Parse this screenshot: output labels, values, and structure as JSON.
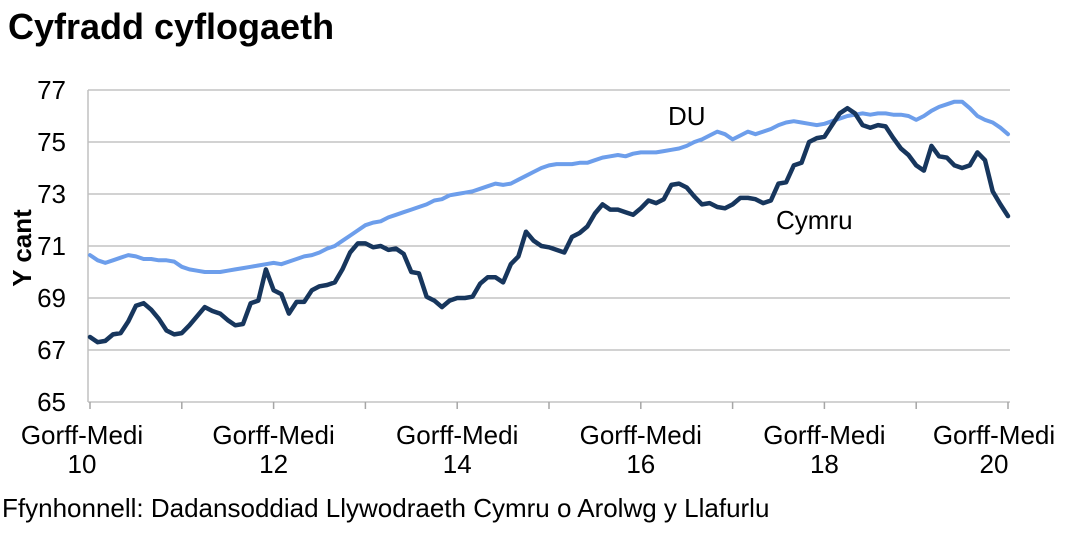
{
  "title": "Cyfradd cyflogaeth",
  "source_note": "Ffynhonnell: Dadansoddiad Llywodraeth Cymru o Arolwg y Llafurlu",
  "colors": {
    "du_line": "#6D9EEB",
    "cymru_line": "#17365D",
    "gridline": "#a6a6a6",
    "axis_border": "#c0c0c0",
    "text": "#000000",
    "background": "#ffffff"
  },
  "chart_data": {
    "type": "line",
    "title": "Cyfradd cyflogaeth",
    "xlabel": "",
    "ylabel": "Y cant",
    "ylim": [
      65,
      77
    ],
    "y_tick_step": 2,
    "y_tick_labels": [
      "65",
      "67",
      "69",
      "71",
      "73",
      "75",
      "77"
    ],
    "grid": "horizontal",
    "legend_position": "inline-labels-on-chart",
    "x_ticks": [
      {
        "month_index": 0,
        "line1": "Gorff-Medi",
        "line2": "10"
      },
      {
        "month_index": 24,
        "line1": "Gorff-Medi",
        "line2": "12"
      },
      {
        "month_index": 48,
        "line1": "Gorff-Medi",
        "line2": "14"
      },
      {
        "month_index": 72,
        "line1": "Gorff-Medi",
        "line2": "16"
      },
      {
        "month_index": 96,
        "line1": "Gorff-Medi",
        "line2": "18"
      },
      {
        "month_index": 120,
        "line1": "Gorff-Medi",
        "line2": "20"
      }
    ],
    "x_minor_ticks_years": 11,
    "series": [
      {
        "name": "DU",
        "color": "#6D9EEB",
        "stroke_width": 4,
        "values": [
          70.65,
          70.45,
          70.35,
          70.45,
          70.55,
          70.65,
          70.6,
          70.5,
          70.5,
          70.45,
          70.45,
          70.4,
          70.2,
          70.1,
          70.05,
          70.0,
          70.0,
          70.0,
          70.05,
          70.1,
          70.15,
          70.2,
          70.25,
          70.3,
          70.35,
          70.3,
          70.4,
          70.5,
          70.6,
          70.65,
          70.75,
          70.9,
          71.0,
          71.2,
          71.4,
          71.6,
          71.8,
          71.9,
          71.95,
          72.1,
          72.2,
          72.3,
          72.4,
          72.5,
          72.6,
          72.75,
          72.8,
          72.95,
          73.0,
          73.05,
          73.1,
          73.2,
          73.3,
          73.4,
          73.35,
          73.4,
          73.55,
          73.7,
          73.85,
          74.0,
          74.1,
          74.15,
          74.15,
          74.15,
          74.2,
          74.2,
          74.3,
          74.4,
          74.45,
          74.5,
          74.45,
          74.55,
          74.6,
          74.6,
          74.6,
          74.65,
          74.7,
          74.75,
          74.85,
          75.0,
          75.1,
          75.25,
          75.4,
          75.3,
          75.1,
          75.25,
          75.4,
          75.3,
          75.4,
          75.5,
          75.65,
          75.75,
          75.8,
          75.75,
          75.7,
          75.65,
          75.7,
          75.8,
          75.9,
          76.0,
          76.05,
          76.1,
          76.05,
          76.1,
          76.1,
          76.05,
          76.05,
          76.0,
          75.85,
          76.0,
          76.2,
          76.35,
          76.45,
          76.55,
          76.55,
          76.3,
          76.0,
          75.85,
          75.75,
          75.55,
          75.3
        ]
      },
      {
        "name": "Cymru",
        "color": "#17365D",
        "stroke_width": 4.5,
        "values": [
          67.5,
          67.3,
          67.35,
          67.6,
          67.65,
          68.1,
          68.7,
          68.8,
          68.55,
          68.2,
          67.75,
          67.6,
          67.65,
          67.95,
          68.3,
          68.65,
          68.5,
          68.4,
          68.15,
          67.95,
          68.0,
          68.8,
          68.9,
          70.1,
          69.3,
          69.15,
          68.4,
          68.85,
          68.85,
          69.3,
          69.45,
          69.5,
          69.6,
          70.1,
          70.75,
          71.1,
          71.1,
          70.95,
          71.0,
          70.85,
          70.9,
          70.7,
          70.0,
          69.95,
          69.05,
          68.9,
          68.65,
          68.9,
          69.0,
          69.0,
          69.05,
          69.55,
          69.8,
          69.8,
          69.6,
          70.3,
          70.6,
          71.55,
          71.2,
          71.0,
          70.95,
          70.85,
          70.75,
          71.35,
          71.5,
          71.75,
          72.25,
          72.6,
          72.4,
          72.4,
          72.3,
          72.2,
          72.45,
          72.75,
          72.65,
          72.8,
          73.35,
          73.4,
          73.25,
          72.9,
          72.6,
          72.65,
          72.5,
          72.45,
          72.6,
          72.85,
          72.85,
          72.8,
          72.65,
          72.75,
          73.4,
          73.45,
          74.1,
          74.2,
          75.0,
          75.15,
          75.2,
          75.65,
          76.1,
          76.3,
          76.1,
          75.65,
          75.55,
          75.65,
          75.6,
          75.15,
          74.75,
          74.5,
          74.1,
          73.9,
          74.85,
          74.45,
          74.4,
          74.1,
          74.0,
          74.1,
          74.6,
          74.3,
          73.1,
          72.6,
          72.15
        ]
      }
    ]
  }
}
